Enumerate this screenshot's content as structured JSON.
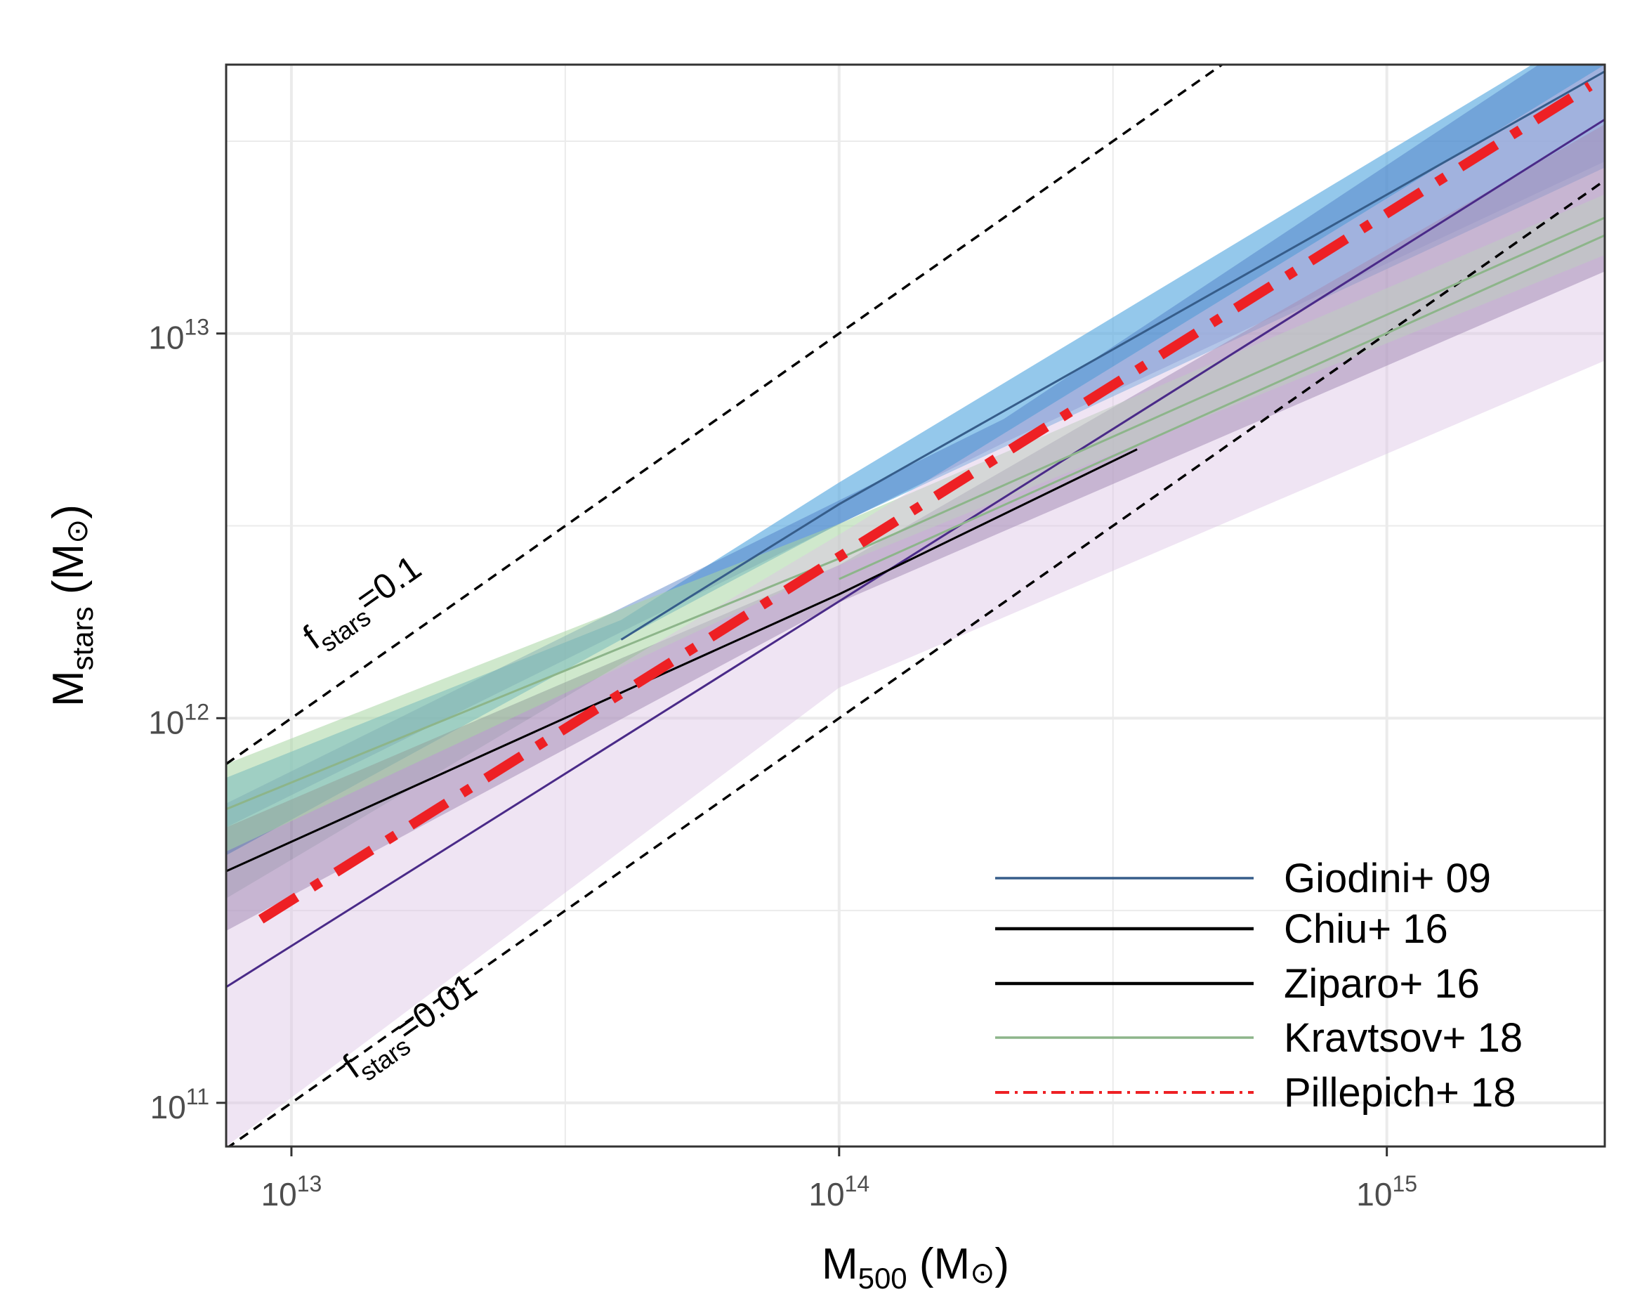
{
  "chart_data": {
    "type": "line",
    "x_scale": "log",
    "y_scale": "log",
    "xlim": [
      7600000000000.0,
      2500000000000000.0
    ],
    "ylim": [
      77000000000.0,
      50000000000000.0
    ],
    "x_ticks": [
      {
        "value": 10000000000000.0,
        "base": "10",
        "exp": "13"
      },
      {
        "value": 100000000000000.0,
        "base": "10",
        "exp": "14"
      },
      {
        "value": 1000000000000000.0,
        "base": "10",
        "exp": "15"
      }
    ],
    "y_ticks": [
      {
        "value": 100000000000.0,
        "base": "10",
        "exp": "11"
      },
      {
        "value": 1000000000000.0,
        "base": "10",
        "exp": "12"
      },
      {
        "value": 10000000000000.0,
        "base": "10",
        "exp": "13"
      }
    ],
    "xlabel": {
      "main": "M",
      "sub": "500",
      "unit": " (M",
      "sun": "⊙",
      "close": ")"
    },
    "ylabel": {
      "main": "M",
      "sub": "stars",
      "unit": " (M",
      "sun": "⊙",
      "close": ")"
    },
    "reference_lines": [
      {
        "name": "fstars=0.1",
        "fraction": 0.1,
        "label_main": "f",
        "label_sub": "stars",
        "label_rest": "=0.1"
      },
      {
        "name": "fstars=0.01",
        "fraction": 0.01,
        "label_main": "f",
        "label_sub": "stars",
        "label_rest": "=0.01"
      }
    ],
    "bands": [
      {
        "name": "Giodini+ 09",
        "color": "#5aabe0",
        "opacity": 0.65,
        "x": [
          7600000000000.0,
          40000000000000.0,
          100000000000000.0,
          2500000000000000.0
        ],
        "lower": [
          440000000000.0,
          1600000000000.0,
          3200000000000.0,
          27000000000000.0
        ],
        "upper": [
          700000000000.0,
          1800000000000.0,
          4100000000000.0,
          65000000000000.0
        ]
      },
      {
        "name": "Chiu+ 16",
        "color": "#4a77c4",
        "opacity": 0.45,
        "x": [
          7600000000000.0,
          200000000000000.0,
          2500000000000000.0
        ],
        "lower": [
          520000000000.0,
          5200000000000.0,
          28000000000000.0
        ],
        "upper": [
          600000000000.0,
          6000000000000.0,
          65000000000000.0
        ]
      },
      {
        "name": "Ziparo+ 16",
        "color": "#7a6494",
        "opacity": 0.55,
        "x": [
          7600000000000.0,
          100000000000000.0,
          2500000000000000.0
        ],
        "lower": [
          280000000000.0,
          2000000000000.0,
          14500000000000.0
        ],
        "upper": [
          520000000000.0,
          2500000000000.0,
          35000000000000.0
        ]
      },
      {
        "name": "Kravtsov+ 18",
        "color": "#a7d6a2",
        "opacity": 0.55,
        "x": [
          7600000000000.0,
          100000000000000.0,
          2500000000000000.0
        ],
        "lower": [
          450000000000.0,
          2500000000000.0,
          16000000000000.0
        ],
        "upper": [
          760000000000.0,
          3200000000000.0,
          23000000000000.0
        ]
      },
      {
        "name": "Pillepich+ 18",
        "color": "#dcc4e4",
        "opacity": 0.45,
        "x": [
          7600000000000.0,
          100000000000000.0,
          2500000000000000.0
        ],
        "lower": [
          77000000000.0,
          1200000000000.0,
          8500000000000.0
        ],
        "upper": [
          340000000000.0,
          3000000000000.0,
          50000000000000.0
        ]
      }
    ],
    "series": [
      {
        "name": "Giodini+ 09",
        "color": "#365d8a",
        "width": 3,
        "dash": "",
        "x": [
          40000000000000.0,
          100000000000000.0,
          2500000000000000.0
        ],
        "y": [
          1600000000000.0,
          3600000000000.0,
          48000000000000.0
        ],
        "legend": "Giodini+ 09"
      },
      {
        "name": "Chiu+ 16",
        "color": "#4a2a88",
        "width": 3,
        "dash": "",
        "x": [
          7600000000000.0,
          2500000000000000.0
        ],
        "y": [
          200000000000.0,
          36000000000000.0
        ],
        "legend": "Chiu+ 16"
      },
      {
        "name": "Ziparo+ 16",
        "color": "#000000",
        "width": 3,
        "dash": "",
        "x": [
          7600000000000.0,
          100000000000000.0,
          350000000000000.0
        ],
        "y": [
          400000000000.0,
          2100000000000.0,
          5000000000000.0
        ],
        "legend": "Ziparo+ 16"
      },
      {
        "name": "Kravtsov+ 18",
        "color": "#8db58a",
        "width": 3,
        "dash": "",
        "x": [
          7600000000000.0,
          100000000000000.0,
          2500000000000000.0
        ],
        "y": [
          580000000000.0,
          2600000000000.0,
          20000000000000.0
        ],
        "legend": "Kravtsov+ 18"
      },
      {
        "name": "Kravtsov+ 18 (alt)",
        "color": "#8db58a",
        "width": 3,
        "dash": "",
        "x": [
          100000000000000.0,
          2500000000000000.0
        ],
        "y": [
          2300000000000.0,
          18000000000000.0
        ],
        "legend": ""
      },
      {
        "name": "Pillepich+ 18",
        "color": "#ee2024",
        "width": 14,
        "dash": "60,26,14,26",
        "x": [
          8800000000000.0,
          2350000000000000.0
        ],
        "y": [
          300000000000.0,
          44000000000000.0
        ],
        "legend": "Pillepich+ 18"
      }
    ],
    "legend_position": "bottom-right"
  }
}
